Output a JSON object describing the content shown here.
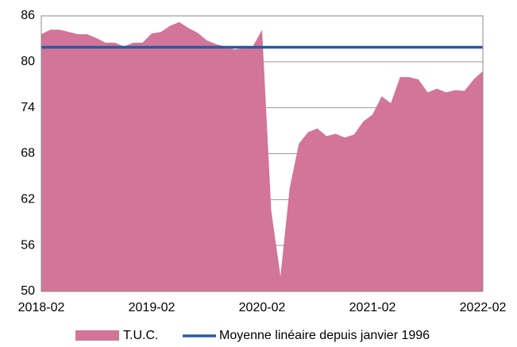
{
  "chart_data": {
    "type": "area",
    "categories": [
      "2018-02",
      null,
      null,
      null,
      null,
      null,
      null,
      null,
      null,
      null,
      null,
      null,
      "2019-02",
      null,
      null,
      null,
      null,
      null,
      null,
      null,
      null,
      null,
      null,
      null,
      "2020-02",
      null,
      null,
      null,
      null,
      null,
      null,
      null,
      null,
      null,
      null,
      null,
      "2021-02",
      null,
      null,
      null,
      null,
      null,
      null,
      null,
      null,
      null,
      null,
      null,
      "2022-02"
    ],
    "series": [
      {
        "name": "T.U.C.",
        "color": "#d27598",
        "values": [
          83.6,
          84.2,
          84.2,
          83.9,
          83.6,
          83.6,
          83.1,
          82.5,
          82.5,
          82.0,
          82.5,
          82.5,
          83.7,
          83.9,
          84.7,
          85.2,
          84.4,
          83.8,
          82.8,
          82.3,
          82.0,
          81.6,
          81.8,
          82.0,
          84.2,
          60.5,
          52.0,
          63.5,
          69.3,
          70.8,
          71.3,
          70.3,
          70.6,
          70.1,
          70.5,
          72.2,
          73.1,
          75.5,
          74.6,
          78.0,
          78.0,
          77.7,
          76.0,
          76.5,
          76.0,
          76.3,
          76.2,
          77.7,
          78.8
        ]
      },
      {
        "name": "Moyenne linéaire depuis janvier 1996",
        "color": "#2a5aa0",
        "value": 81.9
      }
    ],
    "ylim": [
      50,
      86
    ],
    "yticks": [
      50,
      56,
      62,
      68,
      74,
      80,
      86
    ],
    "grid": true
  }
}
